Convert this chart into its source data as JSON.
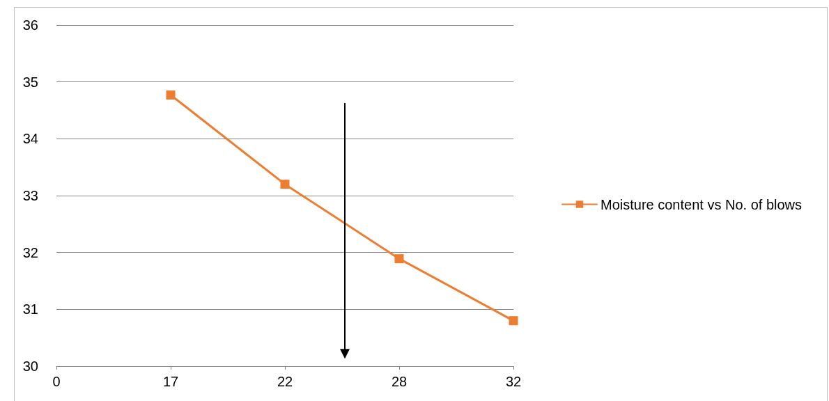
{
  "chart_data": {
    "type": "line",
    "categories": [
      "0",
      "17",
      "22",
      "28",
      "32"
    ],
    "series": [
      {
        "name": "Moisture content vs No. of blows",
        "color": "#ed7d31",
        "values": [
          null,
          34.77,
          33.2,
          31.89,
          30.8
        ]
      }
    ],
    "ylim": [
      30,
      36
    ],
    "yticks": [
      30,
      31,
      32,
      33,
      34,
      35,
      36
    ],
    "grid": "y",
    "legend": "right",
    "marker": "square",
    "line_style": "solid"
  }
}
